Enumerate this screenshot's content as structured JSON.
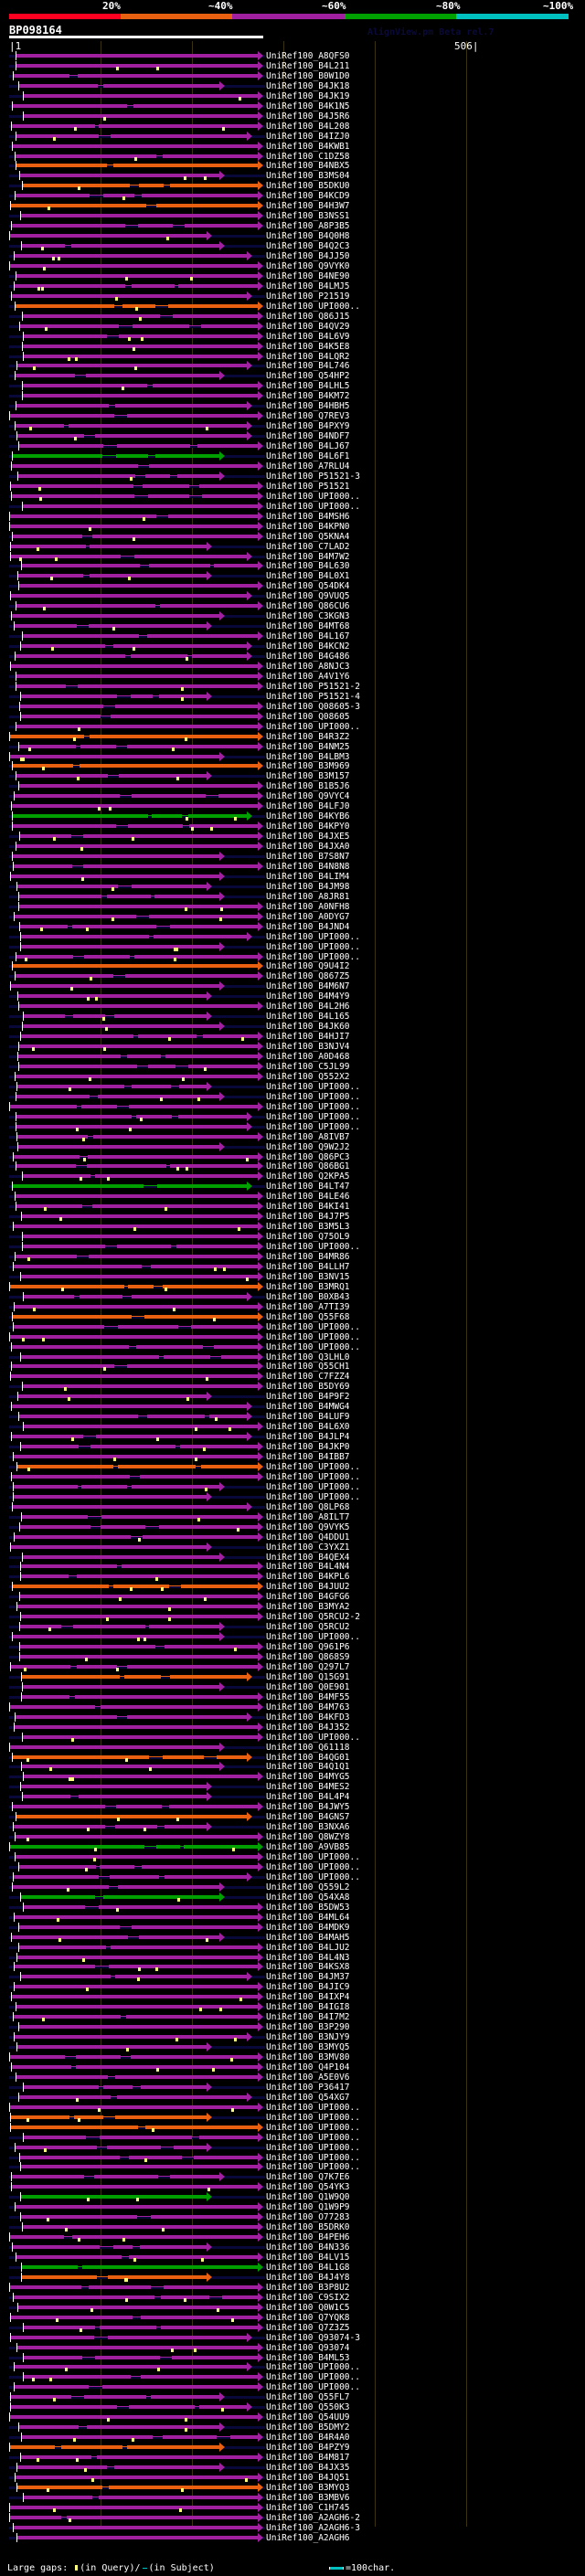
{
  "legend": {
    "labels": [
      "20%",
      "~40%",
      "~60%",
      "~80%",
      "~100%"
    ],
    "colors": [
      "#ff0020",
      "#e86010",
      "#a020a0",
      "#00a000",
      "#00c0c0"
    ]
  },
  "query": {
    "id": "BP098164",
    "start": "1",
    "end": "506",
    "version": "AlignView.pm Beta rel.7"
  },
  "hits": [
    {
      "name": "UniRef100_A8QFS0",
      "color": "purple"
    },
    {
      "name": "UniRef100_B4L211",
      "color": "purple"
    },
    {
      "name": "UniRef100_B0W1D0",
      "color": "purple"
    },
    {
      "name": "UniRef100_B4JK18",
      "color": "purple"
    },
    {
      "name": "UniRef100_B4JK19",
      "color": "purple"
    },
    {
      "name": "UniRef100_B4K1N5",
      "color": "purple"
    },
    {
      "name": "UniRef100_B4J5R6",
      "color": "purple"
    },
    {
      "name": "UniRef100_B4L208",
      "color": "purple"
    },
    {
      "name": "UniRef100_B4IZJ0",
      "color": "purple"
    },
    {
      "name": "UniRef100_B4KWB1",
      "color": "purple"
    },
    {
      "name": "UniRef100_C1DZ58",
      "color": "purple"
    },
    {
      "name": "UniRef100_B4NBX5",
      "color": "orange"
    },
    {
      "name": "UniRef100_B3MS04",
      "color": "purple"
    },
    {
      "name": "UniRef100_B5DKU0",
      "color": "orange"
    },
    {
      "name": "UniRef100_B4KCD9",
      "color": "purple"
    },
    {
      "name": "UniRef100_B4H3W7",
      "color": "orange"
    },
    {
      "name": "UniRef100_B3NSS1",
      "color": "purple"
    },
    {
      "name": "UniRef100_A8P3B5",
      "color": "purple"
    },
    {
      "name": "UniRef100_B4Q0H8",
      "color": "purple"
    },
    {
      "name": "UniRef100_B4Q2C3",
      "color": "purple"
    },
    {
      "name": "UniRef100_B4JJ50",
      "color": "purple"
    },
    {
      "name": "UniRef100_Q9VYK0",
      "color": "purple"
    },
    {
      "name": "UniRef100_B4NE90",
      "color": "purple"
    },
    {
      "name": "UniRef100_B4LMJ5",
      "color": "purple"
    },
    {
      "name": "UniRef100_P21519",
      "color": "purple"
    },
    {
      "name": "UniRef100_UPI000..",
      "color": "orange"
    },
    {
      "name": "UniRef100_Q86J15",
      "color": "purple"
    },
    {
      "name": "UniRef100_B4QV29",
      "color": "purple"
    },
    {
      "name": "UniRef100_B4L6V9",
      "color": "purple"
    },
    {
      "name": "UniRef100_B4K5E8",
      "color": "purple"
    },
    {
      "name": "UniRef100_B4LQR2",
      "color": "purple"
    },
    {
      "name": "UniRef100_B4L746",
      "color": "purple"
    },
    {
      "name": "UniRef100_Q54HP2",
      "color": "purple"
    },
    {
      "name": "UniRef100_B4LHL5",
      "color": "purple"
    },
    {
      "name": "UniRef100_B4KM72",
      "color": "purple"
    },
    {
      "name": "UniRef100_B4HBH5",
      "color": "purple"
    },
    {
      "name": "UniRef100_Q7REV3",
      "color": "purple"
    },
    {
      "name": "UniRef100_B4PXY9",
      "color": "purple"
    },
    {
      "name": "UniRef100_B4NDF7",
      "color": "purple"
    },
    {
      "name": "UniRef100_B4LJ67",
      "color": "purple"
    },
    {
      "name": "UniRef100_B4L6F1",
      "color": "green"
    },
    {
      "name": "UniRef100_A7RLU4",
      "color": "purple"
    },
    {
      "name": "UniRef100_P51521-3",
      "color": "purple"
    },
    {
      "name": "UniRef100_P51521",
      "color": "purple"
    },
    {
      "name": "UniRef100_UPI000..",
      "color": "purple"
    },
    {
      "name": "UniRef100_UPI000..",
      "color": "purple"
    },
    {
      "name": "UniRef100_B4MSH6",
      "color": "purple"
    },
    {
      "name": "UniRef100_B4KPN0",
      "color": "purple"
    },
    {
      "name": "UniRef100_Q5KNA4",
      "color": "purple"
    },
    {
      "name": "UniRef100_C7LAD2",
      "color": "purple"
    },
    {
      "name": "UniRef100_B4M7W2",
      "color": "purple"
    },
    {
      "name": "UniRef100_B4L630",
      "color": "purple"
    },
    {
      "name": "UniRef100_B4L0X1",
      "color": "purple"
    },
    {
      "name": "UniRef100_Q54DK4",
      "color": "purple"
    },
    {
      "name": "UniRef100_Q9VUQ5",
      "color": "purple"
    },
    {
      "name": "UniRef100_Q86CU6",
      "color": "purple"
    },
    {
      "name": "UniRef100_C3KGN3",
      "color": "purple"
    },
    {
      "name": "UniRef100_B4MT68",
      "color": "purple"
    },
    {
      "name": "UniRef100_B4L167",
      "color": "purple"
    },
    {
      "name": "UniRef100_B4KCN2",
      "color": "purple"
    },
    {
      "name": "UniRef100_B4G486",
      "color": "purple"
    },
    {
      "name": "UniRef100_A8NJC3",
      "color": "purple"
    },
    {
      "name": "UniRef100_A4V1Y6",
      "color": "purple"
    },
    {
      "name": "UniRef100_P51521-2",
      "color": "purple"
    },
    {
      "name": "UniRef100_P51521-4",
      "color": "purple"
    },
    {
      "name": "UniRef100_Q08605-3",
      "color": "purple"
    },
    {
      "name": "UniRef100_Q08605",
      "color": "purple"
    },
    {
      "name": "UniRef100_UPI000..",
      "color": "purple"
    },
    {
      "name": "UniRef100_B4R3Z2",
      "color": "orange"
    },
    {
      "name": "UniRef100_B4NM25",
      "color": "purple"
    },
    {
      "name": "UniRef100_B4LBM3",
      "color": "purple"
    },
    {
      "name": "UniRef100_B3M969",
      "color": "orange"
    },
    {
      "name": "UniRef100_B3M157",
      "color": "purple"
    },
    {
      "name": "UniRef100_B1B5J6",
      "color": "purple"
    },
    {
      "name": "UniRef100_Q9VYC4",
      "color": "purple"
    },
    {
      "name": "UniRef100_B4LFJ0",
      "color": "purple"
    },
    {
      "name": "UniRef100_B4KYB6",
      "color": "green"
    },
    {
      "name": "UniRef100_B4KPY0",
      "color": "purple"
    },
    {
      "name": "UniRef100_B4JXE5",
      "color": "purple"
    },
    {
      "name": "UniRef100_B4JXA0",
      "color": "purple"
    },
    {
      "name": "UniRef100_B7S8N7",
      "color": "purple"
    },
    {
      "name": "UniRef100_B4N8N8",
      "color": "purple"
    },
    {
      "name": "UniRef100_B4LIM4",
      "color": "purple"
    },
    {
      "name": "UniRef100_B4JM98",
      "color": "purple"
    },
    {
      "name": "UniRef100_A8JR81",
      "color": "purple"
    },
    {
      "name": "UniRef100_A0NFH8",
      "color": "purple"
    },
    {
      "name": "UniRef100_A0DYG7",
      "color": "purple"
    },
    {
      "name": "UniRef100_B4JND4",
      "color": "purple"
    },
    {
      "name": "UniRef100_UPI000..",
      "color": "purple"
    },
    {
      "name": "UniRef100_UPI000..",
      "color": "purple"
    },
    {
      "name": "UniRef100_UPI000..",
      "color": "purple"
    },
    {
      "name": "UniRef100_Q9U4I2",
      "color": "orange"
    },
    {
      "name": "UniRef100_Q867Z5",
      "color": "purple"
    },
    {
      "name": "UniRef100_B4M6N7",
      "color": "purple"
    },
    {
      "name": "UniRef100_B4M4Y9",
      "color": "purple"
    },
    {
      "name": "UniRef100_B4L2H6",
      "color": "purple"
    },
    {
      "name": "UniRef100_B4L165",
      "color": "purple"
    },
    {
      "name": "UniRef100_B4JK60",
      "color": "purple"
    },
    {
      "name": "UniRef100_B4HJI7",
      "color": "purple"
    },
    {
      "name": "UniRef100_B3NJV4",
      "color": "purple"
    },
    {
      "name": "UniRef100_A0D468",
      "color": "purple"
    },
    {
      "name": "UniRef100_C5JL99",
      "color": "purple"
    },
    {
      "name": "UniRef100_Q552X2",
      "color": "purple"
    },
    {
      "name": "UniRef100_UPI000..",
      "color": "purple"
    },
    {
      "name": "UniRef100_UPI000..",
      "color": "purple"
    },
    {
      "name": "UniRef100_UPI000..",
      "color": "purple"
    },
    {
      "name": "UniRef100_UPI000..",
      "color": "purple"
    },
    {
      "name": "UniRef100_UPI000..",
      "color": "purple"
    },
    {
      "name": "UniRef100_A8IVB7",
      "color": "purple"
    },
    {
      "name": "UniRef100_Q9W2J2",
      "color": "purple"
    },
    {
      "name": "UniRef100_Q86PC3",
      "color": "purple"
    },
    {
      "name": "UniRef100_Q86BG1",
      "color": "purple"
    },
    {
      "name": "UniRef100_Q2KPA5",
      "color": "purple"
    },
    {
      "name": "UniRef100_B4LT47",
      "color": "green"
    },
    {
      "name": "UniRef100_B4LE46",
      "color": "purple"
    },
    {
      "name": "UniRef100_B4KI41",
      "color": "purple"
    },
    {
      "name": "UniRef100_B4J7P5",
      "color": "purple"
    },
    {
      "name": "UniRef100_B3M5L3",
      "color": "purple"
    },
    {
      "name": "UniRef100_Q75OL9",
      "color": "purple"
    },
    {
      "name": "UniRef100_UPI000..",
      "color": "purple"
    },
    {
      "name": "UniRef100_B4MR86",
      "color": "purple"
    },
    {
      "name": "UniRef100_B4LLH7",
      "color": "purple"
    },
    {
      "name": "UniRef100_B3NV15",
      "color": "purple"
    },
    {
      "name": "UniRef100_B3MRQ1",
      "color": "orange"
    },
    {
      "name": "UniRef100_B0XB43",
      "color": "purple"
    },
    {
      "name": "UniRef100_A7TI39",
      "color": "purple"
    },
    {
      "name": "UniRef100_Q55F68",
      "color": "orange"
    },
    {
      "name": "UniRef100_UPI000..",
      "color": "purple"
    },
    {
      "name": "UniRef100_UPI000..",
      "color": "purple"
    },
    {
      "name": "UniRef100_UPI000..",
      "color": "purple"
    },
    {
      "name": "UniRef100_Q3LHL0",
      "color": "purple"
    },
    {
      "name": "UniRef100_Q55CH1",
      "color": "purple"
    },
    {
      "name": "UniRef100_C7FZZ4",
      "color": "purple"
    },
    {
      "name": "UniRef100_B5DY69",
      "color": "purple"
    },
    {
      "name": "UniRef100_B4P9F2",
      "color": "purple"
    },
    {
      "name": "UniRef100_B4MWG4",
      "color": "purple"
    },
    {
      "name": "UniRef100_B4LUF9",
      "color": "purple"
    },
    {
      "name": "UniRef100_B4L6X0",
      "color": "purple"
    },
    {
      "name": "UniRef100_B4JLP4",
      "color": "purple"
    },
    {
      "name": "UniRef100_B4JKP0",
      "color": "purple"
    },
    {
      "name": "UniRef100_B4IBB7",
      "color": "purple"
    },
    {
      "name": "UniRef100_UPI000..",
      "color": "orange"
    },
    {
      "name": "UniRef100_UPI000..",
      "color": "purple"
    },
    {
      "name": "UniRef100_UPI000..",
      "color": "purple"
    },
    {
      "name": "UniRef100_UPI000..",
      "color": "purple"
    },
    {
      "name": "UniRef100_Q8LP68",
      "color": "purple"
    },
    {
      "name": "UniRef100_A8ILT7",
      "color": "purple"
    },
    {
      "name": "UniRef100_Q9VYK5",
      "color": "purple"
    },
    {
      "name": "UniRef100_Q4DDU1",
      "color": "purple"
    },
    {
      "name": "UniRef100_C3YXZ1",
      "color": "purple"
    },
    {
      "name": "UniRef100_B4QEX4",
      "color": "purple"
    },
    {
      "name": "UniRef100_B4L4N4",
      "color": "purple"
    },
    {
      "name": "UniRef100_B4KPL6",
      "color": "purple"
    },
    {
      "name": "UniRef100_B4JUU2",
      "color": "orange"
    },
    {
      "name": "UniRef100_B4GFG6",
      "color": "purple"
    },
    {
      "name": "UniRef100_B3MYA2",
      "color": "purple"
    },
    {
      "name": "UniRef100_Q5RCU2-2",
      "color": "purple"
    },
    {
      "name": "UniRef100_Q5RCU2",
      "color": "purple"
    },
    {
      "name": "UniRef100_UPI000..",
      "color": "purple"
    },
    {
      "name": "UniRef100_Q961P6",
      "color": "purple"
    },
    {
      "name": "UniRef100_Q868S9",
      "color": "purple"
    },
    {
      "name": "UniRef100_Q297L7",
      "color": "purple"
    },
    {
      "name": "UniRef100_Q15G91",
      "color": "orange"
    },
    {
      "name": "UniRef100_Q0E901",
      "color": "purple"
    },
    {
      "name": "UniRef100_B4MF55",
      "color": "purple"
    },
    {
      "name": "UniRef100_B4M763",
      "color": "purple"
    },
    {
      "name": "UniRef100_B4KFD3",
      "color": "purple"
    },
    {
      "name": "UniRef100_B4J352",
      "color": "purple"
    },
    {
      "name": "UniRef100_UPI000..",
      "color": "purple"
    },
    {
      "name": "UniRef100_Q61118",
      "color": "purple"
    },
    {
      "name": "UniRef100_B4QG01",
      "color": "orange"
    },
    {
      "name": "UniRef100_B4Q1Q1",
      "color": "purple"
    },
    {
      "name": "UniRef100_B4MYG5",
      "color": "purple"
    },
    {
      "name": "UniRef100_B4MES2",
      "color": "purple"
    },
    {
      "name": "UniRef100_B4L4P4",
      "color": "purple"
    },
    {
      "name": "UniRef100_B4JWY5",
      "color": "purple"
    },
    {
      "name": "UniRef100_B4GNS7",
      "color": "orange"
    },
    {
      "name": "UniRef100_B3NXA6",
      "color": "purple"
    },
    {
      "name": "UniRef100_Q8WZY8",
      "color": "purple"
    },
    {
      "name": "UniRef100_A9VB85",
      "color": "green"
    },
    {
      "name": "UniRef100_UPI000..",
      "color": "purple"
    },
    {
      "name": "UniRef100_UPI000..",
      "color": "purple"
    },
    {
      "name": "UniRef100_UPI000..",
      "color": "purple"
    },
    {
      "name": "UniRef100_Q559L2",
      "color": "purple"
    },
    {
      "name": "UniRef100_Q54XA8",
      "color": "green"
    },
    {
      "name": "UniRef100_B5DW53",
      "color": "purple"
    },
    {
      "name": "UniRef100_B4ML64",
      "color": "purple"
    },
    {
      "name": "UniRef100_B4MDK9",
      "color": "purple"
    },
    {
      "name": "UniRef100_B4MAH5",
      "color": "purple"
    },
    {
      "name": "UniRef100_B4LJU2",
      "color": "purple"
    },
    {
      "name": "UniRef100_B4L4N3",
      "color": "purple"
    },
    {
      "name": "UniRef100_B4KSX8",
      "color": "purple"
    },
    {
      "name": "UniRef100_B4JM37",
      "color": "purple"
    },
    {
      "name": "UniRef100_B4JIC9",
      "color": "purple"
    },
    {
      "name": "UniRef100_B4IXP4",
      "color": "purple"
    },
    {
      "name": "UniRef100_B4IGI8",
      "color": "purple"
    },
    {
      "name": "UniRef100_B4I7M2",
      "color": "purple"
    },
    {
      "name": "UniRef100_B3P290",
      "color": "purple"
    },
    {
      "name": "UniRef100_B3NJY9",
      "color": "purple"
    },
    {
      "name": "UniRef100_B3MYQ5",
      "color": "purple"
    },
    {
      "name": "UniRef100_B3MV80",
      "color": "purple"
    },
    {
      "name": "UniRef100_Q4P104",
      "color": "purple"
    },
    {
      "name": "UniRef100_A5E0V6",
      "color": "purple"
    },
    {
      "name": "UniRef100_P36417",
      "color": "purple"
    },
    {
      "name": "UniRef100_Q54XG7",
      "color": "purple"
    },
    {
      "name": "UniRef100_UPI000..",
      "color": "purple"
    },
    {
      "name": "UniRef100_UPI000..",
      "color": "orange"
    },
    {
      "name": "UniRef100_UPI000..",
      "color": "orange"
    },
    {
      "name": "UniRef100_UPI000..",
      "color": "purple"
    },
    {
      "name": "UniRef100_UPI000..",
      "color": "purple"
    },
    {
      "name": "UniRef100_UPI000..",
      "color": "purple"
    },
    {
      "name": "UniRef100_UPI000..",
      "color": "purple"
    },
    {
      "name": "UniRef100_Q7K7E6",
      "color": "purple"
    },
    {
      "name": "UniRef100_Q54YK3",
      "color": "purple"
    },
    {
      "name": "UniRef100_Q1W9Q0",
      "color": "green"
    },
    {
      "name": "UniRef100_Q1W9P9",
      "color": "purple"
    },
    {
      "name": "UniRef100_O77283",
      "color": "purple"
    },
    {
      "name": "UniRef100_B5DRK0",
      "color": "purple"
    },
    {
      "name": "UniRef100_B4PEH6",
      "color": "purple"
    },
    {
      "name": "UniRef100_B4N336",
      "color": "purple"
    },
    {
      "name": "UniRef100_B4LV15",
      "color": "purple"
    },
    {
      "name": "UniRef100_B4L1G8",
      "color": "green"
    },
    {
      "name": "UniRef100_B4J4Y8",
      "color": "orange"
    },
    {
      "name": "UniRef100_B3P8U2",
      "color": "purple"
    },
    {
      "name": "UniRef100_C9SIX2",
      "color": "purple"
    },
    {
      "name": "UniRef100_Q0W1C5",
      "color": "purple"
    },
    {
      "name": "UniRef100_Q7YQK8",
      "color": "purple"
    },
    {
      "name": "UniRef100_Q7Z3Z5",
      "color": "purple"
    },
    {
      "name": "UniRef100_Q93074-3",
      "color": "purple"
    },
    {
      "name": "UniRef100_Q93074",
      "color": "purple"
    },
    {
      "name": "UniRef100_B4ML53",
      "color": "purple"
    },
    {
      "name": "UniRef100_UPI000..",
      "color": "purple"
    },
    {
      "name": "UniRef100_UPI000..",
      "color": "purple"
    },
    {
      "name": "UniRef100_UPI000..",
      "color": "purple"
    },
    {
      "name": "UniRef100_Q55FL7",
      "color": "purple"
    },
    {
      "name": "UniRef100_Q550K3",
      "color": "purple"
    },
    {
      "name": "UniRef100_Q54UU9",
      "color": "purple"
    },
    {
      "name": "UniRef100_B5DMY2",
      "color": "purple"
    },
    {
      "name": "UniRef100_B4R4A0",
      "color": "purple"
    },
    {
      "name": "UniRef100_B4PZY9",
      "color": "orange"
    },
    {
      "name": "UniRef100_B4M817",
      "color": "purple"
    },
    {
      "name": "UniRef100_B4JX35",
      "color": "purple"
    },
    {
      "name": "UniRef100_B4JQ51",
      "color": "purple"
    },
    {
      "name": "UniRef100_B3MYQ3",
      "color": "orange"
    },
    {
      "name": "UniRef100_B3MBV6",
      "color": "purple"
    },
    {
      "name": "UniRef100_C1H745",
      "color": "purple"
    },
    {
      "name": "UniRef100_A2AGH6-2",
      "color": "purple"
    },
    {
      "name": "UniRef100_A2AGH6-3",
      "color": "purple"
    },
    {
      "name": "UniRef100_A2AGH6",
      "color": "purple"
    }
  ],
  "footer": {
    "gaps_label": "Large gaps:",
    "query_gap_label": "(in Query)/",
    "subject_gap_label": "(in Subject)",
    "scale_label": "=100char."
  },
  "palette": {
    "purple": "#a020a0",
    "orange": "#e86010",
    "green": "#00a000",
    "track": "#08083a",
    "gap_marker": "#ffff80"
  }
}
